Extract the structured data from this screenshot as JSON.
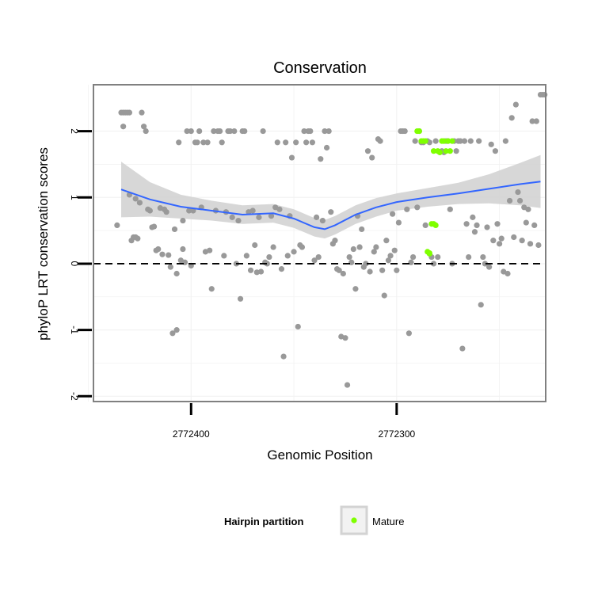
{
  "chart_data": {
    "type": "scatter",
    "title": "Conservation",
    "xlabel": "Genomic Position",
    "ylabel": "phyloP LRT conservation scores",
    "x_reversed": true,
    "xlim": [
      2772447.5,
      2772227.5
    ],
    "ylim": [
      -2.08,
      2.7
    ],
    "x_ticks": [
      2772400,
      2772300
    ],
    "x_tick_labels": [
      "2772400",
      "2772300"
    ],
    "y_ticks": [
      -2,
      -1,
      0,
      1,
      2
    ],
    "y_tick_labels": [
      "-2",
      "-1",
      "0",
      "1",
      "2"
    ],
    "grid": true,
    "reference_line": {
      "y": 0,
      "style": "dashed"
    },
    "legend": {
      "title": "Hairpin partition",
      "position": "bottom",
      "entries": [
        {
          "label": "Mature",
          "color": "#7FFF00"
        }
      ]
    },
    "colors": {
      "other_points": "#999999",
      "mature_points": "#7FFF00",
      "smooth_line": "#3366FF",
      "confidence_band": "#D3D3D3",
      "panel_border": "#808080",
      "grid": "#F2F2F2"
    },
    "series": [
      {
        "name": "",
        "points": [
          [
            2772436,
            0.58
          ],
          [
            2772434,
            2.28
          ],
          [
            2772433,
            2.28
          ],
          [
            2772432,
            2.28
          ],
          [
            2772431,
            2.28
          ],
          [
            2772430,
            2.28
          ],
          [
            2772433,
            2.07
          ],
          [
            2772430,
            1.04
          ],
          [
            2772429,
            0.35
          ],
          [
            2772428,
            0.4
          ],
          [
            2772427,
            0.98
          ],
          [
            2772427,
            0.4
          ],
          [
            2772426,
            0.38
          ],
          [
            2772425,
            0.92
          ],
          [
            2772424,
            2.28
          ],
          [
            2772423,
            2.07
          ],
          [
            2772422,
            2.0
          ],
          [
            2772421,
            0.82
          ],
          [
            2772420,
            0.8
          ],
          [
            2772419,
            0.55
          ],
          [
            2772418,
            0.56
          ],
          [
            2772417,
            0.2
          ],
          [
            2772416,
            0.22
          ],
          [
            2772415,
            0.84
          ],
          [
            2772414,
            0.14
          ],
          [
            2772413,
            0.82
          ],
          [
            2772412,
            0.78
          ],
          [
            2772411,
            0.13
          ],
          [
            2772410,
            -0.05
          ],
          [
            2772409,
            -1.05
          ],
          [
            2772408,
            0.52
          ],
          [
            2772407,
            -1.0
          ],
          [
            2772407,
            -0.15
          ],
          [
            2772406,
            1.83
          ],
          [
            2772405,
            0.05
          ],
          [
            2772404,
            0.65
          ],
          [
            2772404,
            0.22
          ],
          [
            2772403,
            0.02
          ],
          [
            2772402,
            2.0
          ],
          [
            2772401,
            0.8
          ],
          [
            2772400,
            -0.03
          ],
          [
            2772400,
            2.0
          ],
          [
            2772399,
            0.8
          ],
          [
            2772398,
            1.83
          ],
          [
            2772397,
            1.83
          ],
          [
            2772396,
            2.0
          ],
          [
            2772395,
            0.85
          ],
          [
            2772394,
            1.83
          ],
          [
            2772393,
            0.18
          ],
          [
            2772392,
            1.83
          ],
          [
            2772391,
            0.2
          ],
          [
            2772390,
            -0.38
          ],
          [
            2772389,
            2.0
          ],
          [
            2772388,
            0.8
          ],
          [
            2772387,
            2.0
          ],
          [
            2772386,
            2.0
          ],
          [
            2772385,
            1.83
          ],
          [
            2772384,
            0.12
          ],
          [
            2772383,
            0.78
          ],
          [
            2772382,
            2.0
          ],
          [
            2772381,
            2.0
          ],
          [
            2772380,
            0.7
          ],
          [
            2772379,
            2.0
          ],
          [
            2772378,
            0.0
          ],
          [
            2772377,
            0.65
          ],
          [
            2772376,
            -0.53
          ],
          [
            2772375,
            2.0
          ],
          [
            2772374,
            2.0
          ],
          [
            2772373,
            0.12
          ],
          [
            2772372,
            0.78
          ],
          [
            2772371,
            -0.1
          ],
          [
            2772370,
            0.8
          ],
          [
            2772369,
            0.28
          ],
          [
            2772368,
            -0.13
          ],
          [
            2772367,
            0.7
          ],
          [
            2772366,
            -0.12
          ],
          [
            2772365,
            2.0
          ],
          [
            2772364,
            0.02
          ],
          [
            2772363,
            0.0
          ],
          [
            2772362,
            0.1
          ],
          [
            2772361,
            0.72
          ],
          [
            2772360,
            0.25
          ],
          [
            2772359,
            0.85
          ],
          [
            2772358,
            1.83
          ],
          [
            2772357,
            0.82
          ],
          [
            2772356,
            -0.08
          ],
          [
            2772355,
            -1.4
          ],
          [
            2772354,
            1.83
          ],
          [
            2772353,
            0.12
          ],
          [
            2772352,
            0.72
          ],
          [
            2772351,
            1.6
          ],
          [
            2772350,
            0.18
          ],
          [
            2772349,
            1.83
          ],
          [
            2772348,
            -0.95
          ],
          [
            2772347,
            0.28
          ],
          [
            2772346,
            0.25
          ],
          [
            2772345,
            2.0
          ],
          [
            2772344,
            1.83
          ],
          [
            2772343,
            2.0
          ],
          [
            2772342,
            2.0
          ],
          [
            2772341,
            1.83
          ],
          [
            2772340,
            0.05
          ],
          [
            2772339,
            0.7
          ],
          [
            2772338,
            0.1
          ],
          [
            2772337,
            1.58
          ],
          [
            2772336,
            0.65
          ],
          [
            2772335,
            2.0
          ],
          [
            2772334,
            1.75
          ],
          [
            2772333,
            2.0
          ],
          [
            2772332,
            0.78
          ],
          [
            2772331,
            0.3
          ],
          [
            2772330,
            0.35
          ],
          [
            2772329,
            -0.08
          ],
          [
            2772328,
            -0.1
          ],
          [
            2772327,
            -1.1
          ],
          [
            2772326,
            -0.15
          ],
          [
            2772325,
            -1.12
          ],
          [
            2772324,
            -1.83
          ],
          [
            2772323,
            0.1
          ],
          [
            2772322,
            0.02
          ],
          [
            2772321,
            0.22
          ],
          [
            2772320,
            -0.38
          ],
          [
            2772319,
            0.72
          ],
          [
            2772318,
            0.25
          ],
          [
            2772317,
            0.52
          ],
          [
            2772316,
            -0.05
          ],
          [
            2772315,
            0.0
          ],
          [
            2772314,
            1.7
          ],
          [
            2772313,
            -0.12
          ],
          [
            2772312,
            1.6
          ],
          [
            2772311,
            0.18
          ],
          [
            2772310,
            0.25
          ],
          [
            2772309,
            1.88
          ],
          [
            2772308,
            1.85
          ],
          [
            2772307,
            -0.1
          ],
          [
            2772306,
            -0.48
          ],
          [
            2772305,
            0.35
          ],
          [
            2772304,
            0.05
          ],
          [
            2772303,
            0.12
          ],
          [
            2772302,
            0.75
          ],
          [
            2772301,
            0.2
          ],
          [
            2772300,
            -0.1
          ],
          [
            2772299,
            0.62
          ],
          [
            2772298,
            2.0
          ],
          [
            2772297,
            2.0
          ],
          [
            2772296,
            2.0
          ],
          [
            2772295,
            0.82
          ],
          [
            2772294,
            -1.05
          ],
          [
            2772293,
            0.02
          ],
          [
            2772292,
            0.1
          ],
          [
            2772291,
            1.85
          ],
          [
            2772290,
            0.85
          ],
          [
            2772289,
            2.0
          ],
          [
            2772288,
            1.83
          ],
          [
            2772287,
            1.83
          ],
          [
            2772286,
            0.58
          ],
          [
            2772285,
            1.85
          ],
          [
            2772284,
            1.83
          ],
          [
            2772283,
            0.1
          ],
          [
            2772282,
            0.0
          ],
          [
            2772281,
            1.85
          ],
          [
            2772280,
            0.1
          ],
          [
            2772279,
            1.68
          ],
          [
            2772278,
            1.7
          ],
          [
            2772277,
            1.68
          ],
          [
            2772276,
            1.85
          ],
          [
            2772275,
            1.85
          ],
          [
            2772274,
            0.82
          ],
          [
            2772273,
            0.0
          ],
          [
            2772272,
            1.85
          ],
          [
            2772271,
            1.7
          ],
          [
            2772270,
            1.85
          ],
          [
            2772269,
            1.85
          ],
          [
            2772268,
            -1.28
          ],
          [
            2772267,
            1.85
          ],
          [
            2772266,
            0.6
          ],
          [
            2772265,
            0.1
          ],
          [
            2772264,
            1.85
          ],
          [
            2772263,
            0.7
          ],
          [
            2772262,
            0.48
          ],
          [
            2772261,
            0.58
          ],
          [
            2772260,
            1.85
          ],
          [
            2772259,
            -0.62
          ],
          [
            2772258,
            0.1
          ],
          [
            2772257,
            0.0
          ],
          [
            2772256,
            0.55
          ],
          [
            2772255,
            -0.05
          ],
          [
            2772254,
            1.8
          ],
          [
            2772253,
            0.35
          ],
          [
            2772252,
            1.7
          ],
          [
            2772251,
            0.6
          ],
          [
            2772250,
            0.3
          ],
          [
            2772249,
            0.38
          ],
          [
            2772248,
            -0.12
          ],
          [
            2772247,
            1.85
          ],
          [
            2772246,
            -0.15
          ],
          [
            2772245,
            0.95
          ],
          [
            2772244,
            2.2
          ],
          [
            2772243,
            0.4
          ],
          [
            2772242,
            2.4
          ],
          [
            2772241,
            1.08
          ],
          [
            2772240,
            0.95
          ],
          [
            2772239,
            0.35
          ],
          [
            2772238,
            0.85
          ],
          [
            2772237,
            0.62
          ],
          [
            2772236,
            0.82
          ],
          [
            2772235,
            0.3
          ],
          [
            2772234,
            2.15
          ],
          [
            2772233,
            0.58
          ],
          [
            2772232,
            2.15
          ],
          [
            2772231,
            0.28
          ],
          [
            2772230,
            2.55
          ],
          [
            2772229,
            2.55
          ],
          [
            2772228,
            2.55
          ]
        ]
      },
      {
        "name": "Mature",
        "points": [
          [
            2772290,
            2.0
          ],
          [
            2772289,
            2.0
          ],
          [
            2772288,
            1.85
          ],
          [
            2772287,
            1.85
          ],
          [
            2772286,
            1.85
          ],
          [
            2772285,
            0.18
          ],
          [
            2772284,
            0.15
          ],
          [
            2772283,
            0.6
          ],
          [
            2772282,
            1.7
          ],
          [
            2772281,
            0.58
          ],
          [
            2772280,
            1.7
          ],
          [
            2772279,
            1.68
          ],
          [
            2772278,
            1.85
          ],
          [
            2772277,
            1.85
          ],
          [
            2772276,
            1.7
          ],
          [
            2772275,
            1.85
          ],
          [
            2772274,
            1.7
          ],
          [
            2772273,
            1.85
          ],
          [
            2772284,
            0.16
          ],
          [
            2772282,
            0.6
          ]
        ]
      }
    ],
    "smooth": {
      "x": [
        2772434,
        2772420,
        2772405,
        2772390,
        2772375,
        2772360,
        2772350,
        2772340,
        2772335,
        2772330,
        2772320,
        2772310,
        2772300,
        2772285,
        2772270,
        2772255,
        2772240,
        2772230
      ],
      "y": [
        1.12,
        0.97,
        0.86,
        0.8,
        0.74,
        0.76,
        0.68,
        0.55,
        0.52,
        0.58,
        0.74,
        0.85,
        0.93,
        1.0,
        1.06,
        1.13,
        1.2,
        1.24
      ],
      "band_width": [
        0.42,
        0.26,
        0.18,
        0.15,
        0.14,
        0.14,
        0.14,
        0.14,
        0.14,
        0.14,
        0.14,
        0.14,
        0.13,
        0.14,
        0.16,
        0.22,
        0.32,
        0.4
      ]
    }
  }
}
